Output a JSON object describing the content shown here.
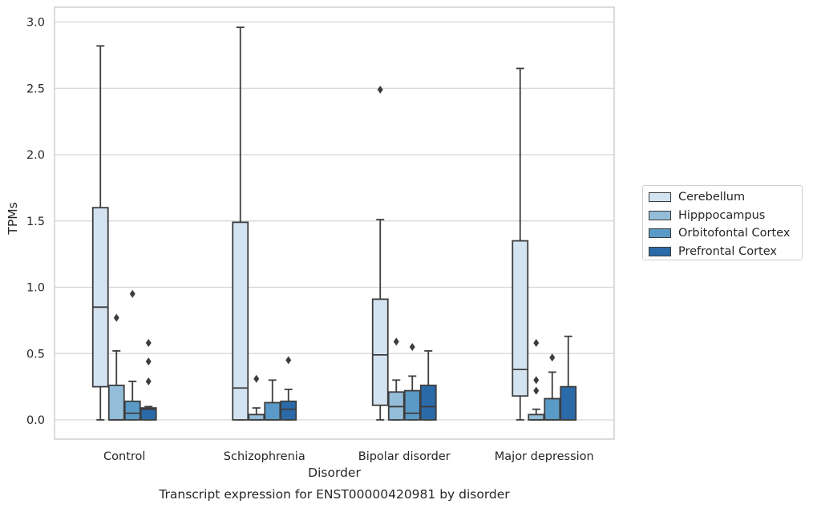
{
  "chart_data": {
    "type": "box",
    "caption": "Transcript expression for ENST00000420981 by disorder",
    "xlabel": "Disorder",
    "ylabel": "TPMs",
    "ylim": [
      -0.15,
      3.12
    ],
    "yticks": [
      "0.0",
      "0.5",
      "1.0",
      "1.5",
      "2.0",
      "2.5",
      "3.0"
    ],
    "grid": true,
    "legend_position": "right",
    "categories": [
      "Control",
      "Schizophrenia",
      "Bipolar disorder",
      "Major depression"
    ],
    "series": [
      {
        "name": "Cerebellum",
        "color": "#d4e3f2",
        "boxes": [
          {
            "min": 0.0,
            "q1": 0.25,
            "median": 0.85,
            "q3": 1.6,
            "max": 2.82,
            "outliers": []
          },
          {
            "min": 0.0,
            "q1": 0.0,
            "median": 0.24,
            "q3": 1.49,
            "max": 2.96,
            "outliers": []
          },
          {
            "min": 0.0,
            "q1": 0.11,
            "median": 0.49,
            "q3": 0.91,
            "max": 1.51,
            "outliers": [
              2.49
            ]
          },
          {
            "min": 0.0,
            "q1": 0.18,
            "median": 0.38,
            "q3": 1.35,
            "max": 2.65,
            "outliers": []
          }
        ]
      },
      {
        "name": "Hipppocampus",
        "color": "#94bdd9",
        "boxes": [
          {
            "min": 0.0,
            "q1": 0.0,
            "median": 0.0,
            "q3": 0.26,
            "max": 0.52,
            "outliers": [
              0.77
            ]
          },
          {
            "min": 0.0,
            "q1": 0.0,
            "median": 0.0,
            "q3": 0.04,
            "max": 0.09,
            "outliers": [
              0.31
            ]
          },
          {
            "min": 0.0,
            "q1": 0.0,
            "median": 0.1,
            "q3": 0.21,
            "max": 0.3,
            "outliers": [
              0.59
            ]
          },
          {
            "min": 0.0,
            "q1": 0.0,
            "median": 0.0,
            "q3": 0.04,
            "max": 0.08,
            "outliers": [
              0.58,
              0.3,
              0.22
            ]
          }
        ]
      },
      {
        "name": "Orbitofontal Cortex",
        "color": "#5a9ac6",
        "boxes": [
          {
            "min": 0.0,
            "q1": 0.0,
            "median": 0.05,
            "q3": 0.14,
            "max": 0.29,
            "outliers": [
              0.95
            ]
          },
          {
            "min": 0.0,
            "q1": 0.0,
            "median": 0.0,
            "q3": 0.13,
            "max": 0.3,
            "outliers": []
          },
          {
            "min": 0.0,
            "q1": 0.0,
            "median": 0.05,
            "q3": 0.22,
            "max": 0.33,
            "outliers": [
              0.55
            ]
          },
          {
            "min": 0.0,
            "q1": 0.0,
            "median": 0.0,
            "q3": 0.16,
            "max": 0.36,
            "outliers": [
              0.47
            ]
          }
        ]
      },
      {
        "name": "Prefrontal Cortex",
        "color": "#2b6aa9",
        "boxes": [
          {
            "min": 0.0,
            "q1": 0.0,
            "median": 0.08,
            "q3": 0.09,
            "max": 0.1,
            "outliers": [
              0.58,
              0.44,
              0.29
            ]
          },
          {
            "min": 0.0,
            "q1": 0.0,
            "median": 0.08,
            "q3": 0.14,
            "max": 0.23,
            "outliers": [
              0.45
            ]
          },
          {
            "min": 0.0,
            "q1": 0.0,
            "median": 0.1,
            "q3": 0.26,
            "max": 0.52,
            "outliers": []
          },
          {
            "min": 0.0,
            "q1": 0.0,
            "median": 0.0,
            "q3": 0.25,
            "max": 0.63,
            "outliers": []
          }
        ]
      }
    ]
  }
}
